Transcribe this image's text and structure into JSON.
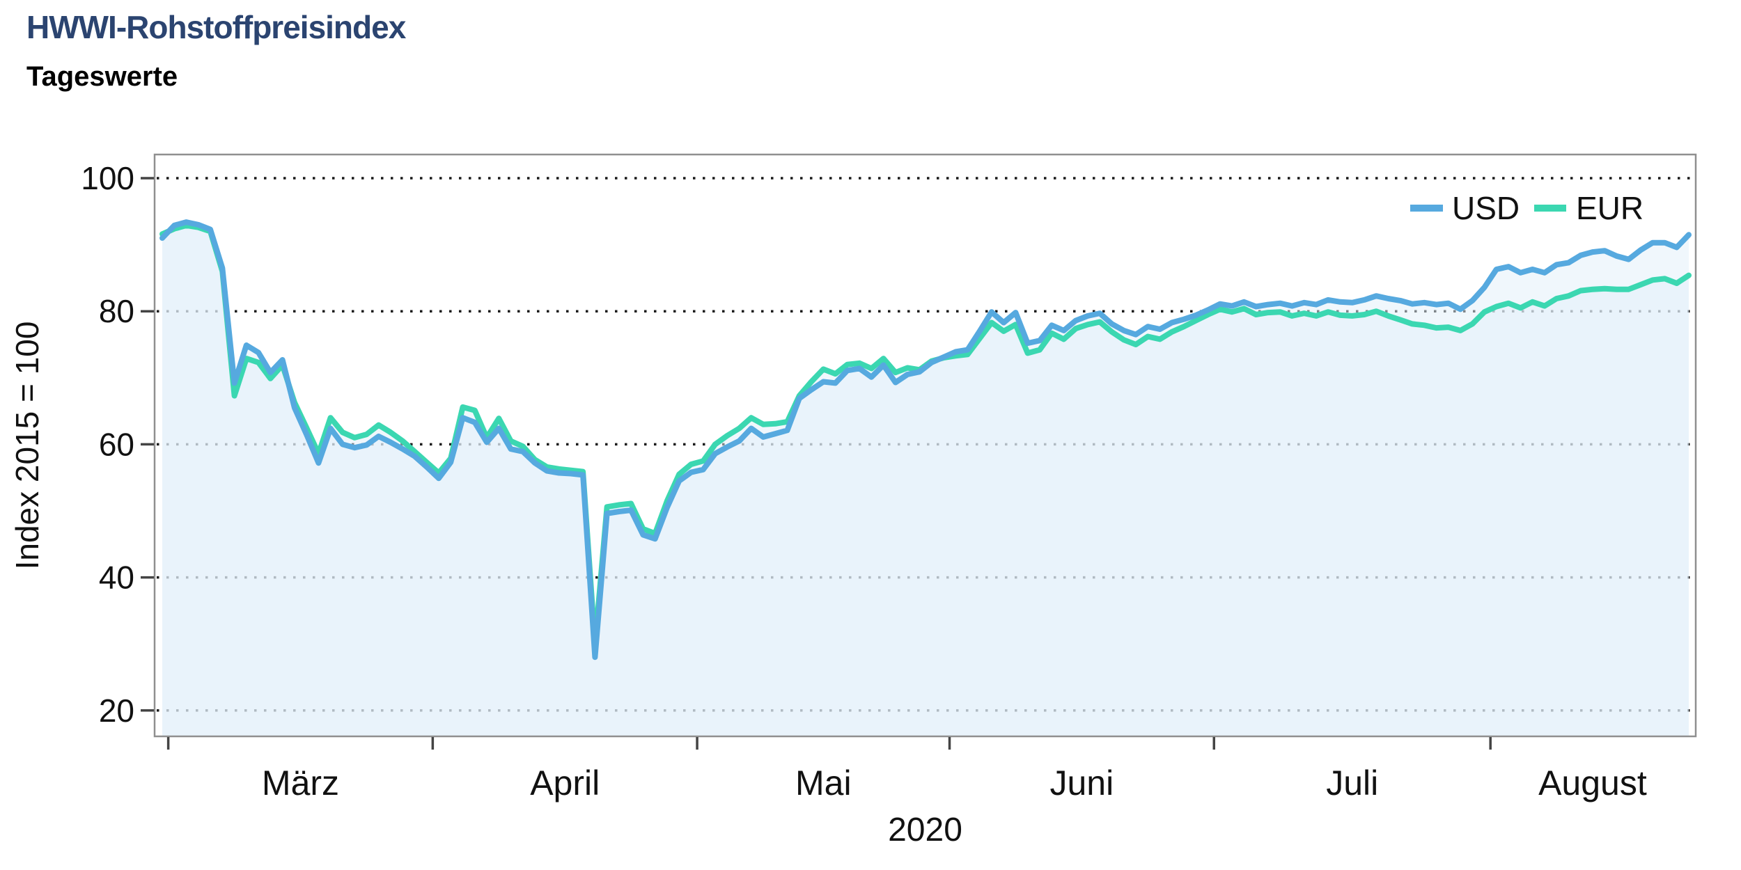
{
  "header": {
    "title": "HWWI-Rohstoffpreisindex",
    "subtitle": "Tageswerte"
  },
  "chart": {
    "y_axis": {
      "title": "Index 2015 = 100",
      "ticks": [
        100,
        80,
        60,
        40,
        20
      ]
    },
    "x_axis": {
      "month_labels": [
        "März",
        "April",
        "Mai",
        "Juni",
        "Juli",
        "August"
      ],
      "year_label": "2020"
    },
    "legend": {
      "position": "top-right-inside",
      "entries": [
        "USD",
        "EUR"
      ]
    },
    "colors": {
      "title_text": "#2B4470",
      "body_text": "#111111",
      "frame": "#8F8F8F",
      "grid_dots": "#1A1A1A",
      "area_fill": "#E2F0F9",
      "usd_line": "#56A9DF",
      "eur_line": "#3BD7B1"
    }
  },
  "chart_data": {
    "type": "line",
    "title": "HWWI-Rohstoffpreisindex",
    "subtitle": "Tageswerte",
    "xlabel": "2020",
    "ylabel": "Index 2015 = 100",
    "ylim": [
      16,
      103.5
    ],
    "x_description": "daily values, weekday trading days from 2020-02-28 to 2020-08-25",
    "grid": "horizontal dotted gridlines at 20, 40, 60, 80, 100",
    "legend_position": "top-right inside plot",
    "categories": [
      "2020-02-28",
      "2020-03-02",
      "2020-03-03",
      "2020-03-04",
      "2020-03-05",
      "2020-03-06",
      "2020-03-09",
      "2020-03-10",
      "2020-03-11",
      "2020-03-12",
      "2020-03-13",
      "2020-03-16",
      "2020-03-17",
      "2020-03-18",
      "2020-03-19",
      "2020-03-20",
      "2020-03-23",
      "2020-03-24",
      "2020-03-25",
      "2020-03-26",
      "2020-03-27",
      "2020-03-30",
      "2020-03-31",
      "2020-04-01",
      "2020-04-02",
      "2020-04-03",
      "2020-04-06",
      "2020-04-07",
      "2020-04-08",
      "2020-04-09",
      "2020-04-10",
      "2020-04-13",
      "2020-04-14",
      "2020-04-15",
      "2020-04-16",
      "2020-04-17",
      "2020-04-20",
      "2020-04-21",
      "2020-04-22",
      "2020-04-23",
      "2020-04-24",
      "2020-04-27",
      "2020-04-28",
      "2020-04-29",
      "2020-04-30",
      "2020-05-01",
      "2020-05-04",
      "2020-05-05",
      "2020-05-06",
      "2020-05-07",
      "2020-05-08",
      "2020-05-11",
      "2020-05-12",
      "2020-05-13",
      "2020-05-14",
      "2020-05-15",
      "2020-05-18",
      "2020-05-19",
      "2020-05-20",
      "2020-05-21",
      "2020-05-22",
      "2020-05-25",
      "2020-05-26",
      "2020-05-27",
      "2020-05-28",
      "2020-05-29",
      "2020-06-01",
      "2020-06-02",
      "2020-06-03",
      "2020-06-04",
      "2020-06-05",
      "2020-06-08",
      "2020-06-09",
      "2020-06-10",
      "2020-06-11",
      "2020-06-12",
      "2020-06-15",
      "2020-06-16",
      "2020-06-17",
      "2020-06-18",
      "2020-06-19",
      "2020-06-22",
      "2020-06-23",
      "2020-06-24",
      "2020-06-25",
      "2020-06-26",
      "2020-06-29",
      "2020-06-30",
      "2020-07-01",
      "2020-07-02",
      "2020-07-03",
      "2020-07-06",
      "2020-07-07",
      "2020-07-08",
      "2020-07-09",
      "2020-07-10",
      "2020-07-13",
      "2020-07-14",
      "2020-07-15",
      "2020-07-16",
      "2020-07-17",
      "2020-07-20",
      "2020-07-21",
      "2020-07-22",
      "2020-07-23",
      "2020-07-24",
      "2020-07-27",
      "2020-07-28",
      "2020-07-29",
      "2020-07-30",
      "2020-07-31",
      "2020-08-03",
      "2020-08-04",
      "2020-08-05",
      "2020-08-06",
      "2020-08-07",
      "2020-08-10",
      "2020-08-11",
      "2020-08-12",
      "2020-08-13",
      "2020-08-14",
      "2020-08-17",
      "2020-08-18",
      "2020-08-19",
      "2020-08-20",
      "2020-08-21",
      "2020-08-24",
      "2020-08-25"
    ],
    "series": [
      {
        "name": "USD",
        "color": "#56A9DF",
        "values": [
          91.0,
          92.9,
          93.4,
          93.0,
          92.3,
          86.5,
          69.2,
          74.9,
          73.8,
          70.8,
          72.7,
          65.5,
          61.5,
          57.2,
          62.4,
          60.0,
          59.5,
          59.9,
          61.2,
          60.3,
          59.3,
          58.2,
          56.6,
          54.9,
          57.3,
          64.0,
          63.3,
          60.3,
          62.4,
          59.3,
          58.9,
          57.2,
          56.0,
          55.7,
          55.6,
          55.4,
          28.0,
          49.6,
          49.9,
          50.1,
          46.4,
          45.8,
          50.5,
          54.5,
          55.8,
          56.2,
          58.6,
          59.6,
          60.5,
          62.4,
          61.1,
          61.6,
          62.1,
          66.9,
          68.2,
          69.4,
          69.2,
          71.1,
          71.4,
          70.1,
          71.9,
          69.3,
          70.5,
          70.9,
          72.3,
          73.1,
          73.9,
          74.2,
          77.0,
          79.9,
          78.3,
          79.8,
          75.2,
          75.6,
          77.9,
          77.1,
          78.6,
          79.3,
          79.7,
          78.1,
          77.1,
          76.5,
          77.7,
          77.3,
          78.3,
          78.8,
          79.4,
          80.2,
          81.1,
          80.8,
          81.4,
          80.7,
          81.0,
          81.2,
          80.8,
          81.3,
          81.0,
          81.7,
          81.4,
          81.3,
          81.7,
          82.3,
          81.9,
          81.6,
          81.1,
          81.3,
          81.0,
          81.2,
          80.3,
          81.6,
          83.6,
          86.3,
          86.7,
          85.8,
          86.3,
          85.8,
          87.0,
          87.3,
          88.4,
          88.9,
          89.1,
          88.3,
          87.8,
          89.2,
          90.3,
          90.3,
          89.6,
          91.5
        ]
      },
      {
        "name": "EUR",
        "color": "#3BD7B1",
        "values": [
          91.6,
          92.4,
          92.9,
          92.6,
          92.0,
          86.0,
          67.3,
          72.9,
          72.3,
          69.9,
          71.9,
          66.3,
          62.5,
          58.6,
          64.0,
          61.8,
          61.0,
          61.5,
          62.9,
          61.8,
          60.5,
          58.9,
          57.3,
          55.7,
          57.9,
          65.6,
          65.1,
          61.0,
          63.9,
          60.5,
          59.7,
          57.7,
          56.6,
          56.3,
          56.1,
          55.9,
          30.0,
          50.6,
          50.9,
          51.1,
          47.3,
          46.6,
          51.5,
          55.5,
          57.0,
          57.5,
          60.0,
          61.3,
          62.4,
          64.0,
          63.0,
          63.1,
          63.4,
          67.3,
          69.4,
          71.3,
          70.6,
          72.0,
          72.2,
          71.4,
          72.9,
          70.8,
          71.5,
          71.2,
          72.5,
          73.0,
          73.3,
          73.5,
          75.9,
          78.3,
          77.0,
          78.0,
          73.7,
          74.2,
          76.7,
          75.8,
          77.4,
          78.0,
          78.4,
          76.9,
          75.7,
          75.0,
          76.2,
          75.8,
          76.9,
          77.7,
          78.6,
          79.5,
          80.3,
          79.9,
          80.4,
          79.5,
          79.8,
          79.9,
          79.3,
          79.7,
          79.3,
          79.9,
          79.4,
          79.3,
          79.5,
          80.0,
          79.3,
          78.7,
          78.1,
          77.9,
          77.5,
          77.6,
          77.1,
          78.1,
          79.9,
          80.7,
          81.2,
          80.5,
          81.4,
          80.8,
          81.9,
          82.3,
          83.1,
          83.3,
          83.4,
          83.3,
          83.3,
          84.0,
          84.7,
          84.9,
          84.2,
          85.4
        ]
      }
    ]
  }
}
